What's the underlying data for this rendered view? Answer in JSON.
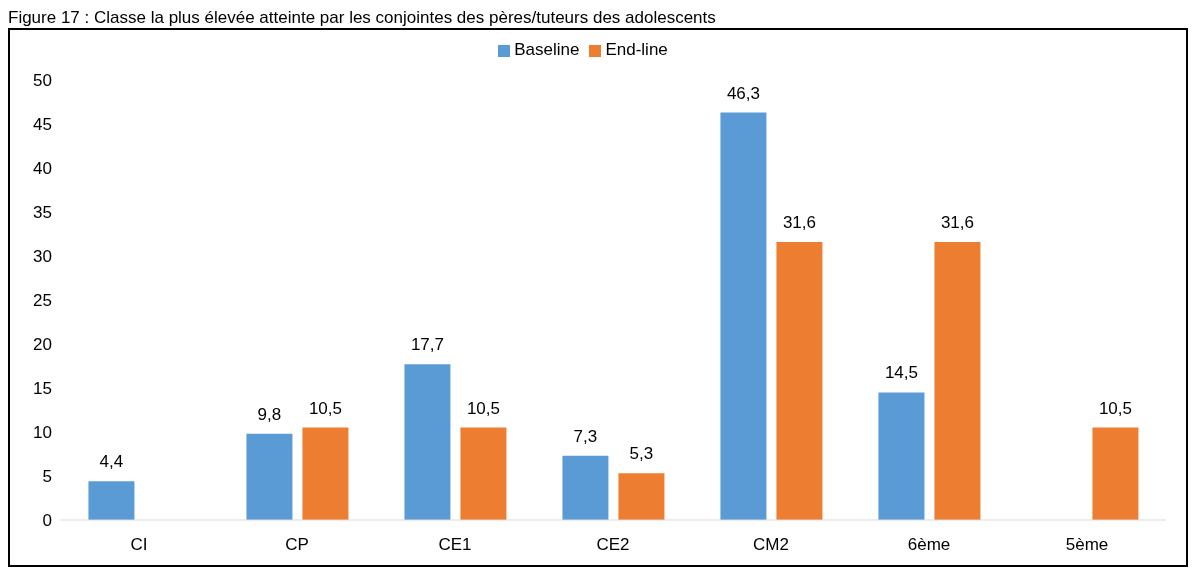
{
  "chart_data": {
    "type": "bar",
    "title": "Figure 17 : Classe la plus élevée atteinte par les conjointes des pères/tuteurs des adolescents",
    "categories": [
      "CI",
      "CP",
      "CE1",
      "CE2",
      "CM2",
      "6ème",
      "5ème"
    ],
    "series": [
      {
        "name": "Baseline",
        "color": "#5b9bd5",
        "values": [
          4.4,
          9.8,
          17.7,
          7.3,
          46.3,
          14.5,
          null
        ],
        "value_labels": [
          "4,4",
          "9,8",
          "17,7",
          "7,3",
          "46,3",
          "14,5",
          null
        ]
      },
      {
        "name": "End-line",
        "color": "#ed7d31",
        "values": [
          null,
          10.5,
          10.5,
          5.3,
          31.6,
          31.6,
          10.5
        ],
        "value_labels": [
          null,
          "10,5",
          "10,5",
          "5,3",
          "31,6",
          "31,6",
          "10,5"
        ]
      }
    ],
    "ylim": [
      0,
      50
    ],
    "yticks": [
      0,
      5,
      10,
      15,
      20,
      25,
      30,
      35,
      40,
      45,
      50
    ],
    "grid": false,
    "legend": "top"
  }
}
